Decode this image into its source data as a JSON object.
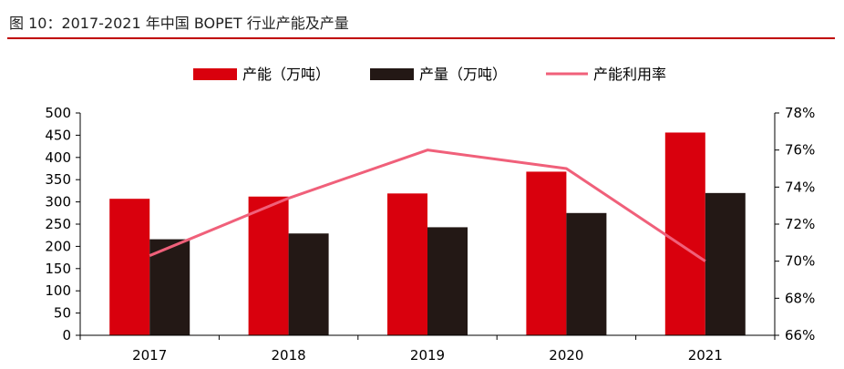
{
  "header": {
    "title": "图 10：2017-2021 年中国 BOPET 行业产能及产量"
  },
  "colors": {
    "capacity": "#d9000d",
    "output": "#231815",
    "rate": "#f0607a",
    "axis": "#000000",
    "title_rule": "#c00000"
  },
  "chart_data": {
    "type": "bar",
    "title": "图 10：2017-2021 年中国 BOPET 行业产能及产量",
    "categories": [
      "2017",
      "2018",
      "2019",
      "2020",
      "2021"
    ],
    "series": [
      {
        "name": "产能（万吨）",
        "type": "bar",
        "axis": "left",
        "values": [
          307,
          312,
          319,
          368,
          456
        ]
      },
      {
        "name": "产量（万吨）",
        "type": "bar",
        "axis": "left",
        "values": [
          216,
          229,
          243,
          275,
          320
        ]
      },
      {
        "name": "产能利用率",
        "type": "line",
        "axis": "right",
        "values": [
          70.3,
          73.4,
          76.0,
          75.0,
          70.0
        ]
      }
    ],
    "left_axis": {
      "min": 0,
      "max": 500,
      "step": 50,
      "ticks": [
        "0",
        "50",
        "100",
        "150",
        "200",
        "250",
        "300",
        "350",
        "400",
        "450",
        "500"
      ]
    },
    "right_axis": {
      "min": 66,
      "max": 78,
      "step": 2,
      "ticks": [
        "66%",
        "68%",
        "70%",
        "72%",
        "74%",
        "76%",
        "78%"
      ]
    },
    "legend_position": "top",
    "grid": false
  }
}
